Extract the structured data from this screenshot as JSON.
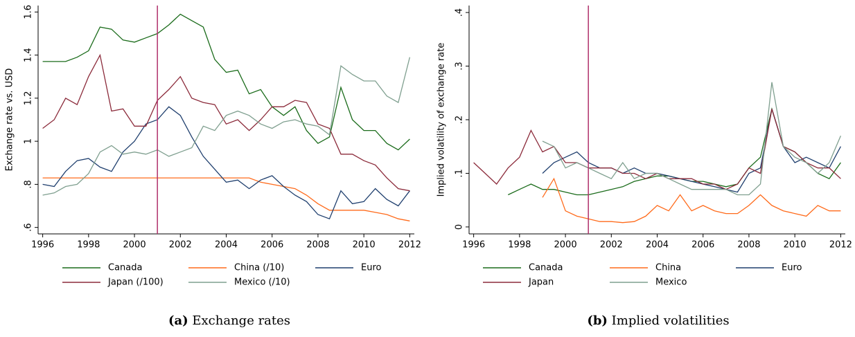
{
  "chart_data": [
    {
      "type": "line",
      "caption_label": "(a)",
      "caption": "Exchange rates",
      "ylabel": "Exchange rate vs. USD",
      "x": [
        1996,
        1996.5,
        1997,
        1997.5,
        1998,
        1998.5,
        1999,
        1999.5,
        2000,
        2000.5,
        2001,
        2001.5,
        2002,
        2002.5,
        2003,
        2003.5,
        2004,
        2004.5,
        2005,
        2005.5,
        2006,
        2006.5,
        2007,
        2007.5,
        2008,
        2008.5,
        2009,
        2009.5,
        2010,
        2010.5,
        2011,
        2011.5,
        2012
      ],
      "xlim": [
        1995.8,
        2012.2
      ],
      "xticks": [
        1996,
        1998,
        2000,
        2002,
        2004,
        2006,
        2008,
        2010,
        2012
      ],
      "ylim": [
        0.57,
        1.63
      ],
      "yticks": [
        {
          "value": 0.6,
          "label": ".6"
        },
        {
          "value": 0.8,
          "label": ".8"
        },
        1,
        1.2,
        1.4,
        1.6
      ],
      "vline": 2001,
      "vline_color": "#b0306a",
      "series": [
        {
          "name": "Canada",
          "color": "#1a6b1a",
          "values": [
            1.37,
            1.37,
            1.37,
            1.39,
            1.42,
            1.53,
            1.52,
            1.47,
            1.46,
            1.48,
            1.5,
            1.54,
            1.59,
            1.56,
            1.53,
            1.38,
            1.32,
            1.33,
            1.22,
            1.24,
            1.16,
            1.12,
            1.16,
            1.05,
            0.99,
            1.02,
            1.25,
            1.1,
            1.05,
            1.05,
            0.99,
            0.96,
            1.01
          ]
        },
        {
          "name": "China (/10)",
          "color": "#ff6a1a",
          "values": [
            0.83,
            0.83,
            0.83,
            0.83,
            0.83,
            0.83,
            0.83,
            0.83,
            0.83,
            0.83,
            0.83,
            0.83,
            0.83,
            0.83,
            0.83,
            0.83,
            0.83,
            0.83,
            0.83,
            0.81,
            0.8,
            0.79,
            0.78,
            0.75,
            0.71,
            0.68,
            0.68,
            0.68,
            0.68,
            0.67,
            0.66,
            0.64,
            0.63
          ]
        },
        {
          "name": "Euro",
          "color": "#1f3f6e",
          "values": [
            0.8,
            0.79,
            0.86,
            0.91,
            0.92,
            0.88,
            0.86,
            0.95,
            1.0,
            1.08,
            1.1,
            1.16,
            1.12,
            1.02,
            0.93,
            0.87,
            0.81,
            0.82,
            0.78,
            0.82,
            0.84,
            0.79,
            0.75,
            0.72,
            0.66,
            0.64,
            0.77,
            0.71,
            0.72,
            0.78,
            0.73,
            0.7,
            0.77
          ]
        },
        {
          "name": "Japan (/100)",
          "color": "#8b2a3a",
          "values": [
            1.06,
            1.1,
            1.2,
            1.17,
            1.3,
            1.4,
            1.14,
            1.15,
            1.07,
            1.07,
            1.19,
            1.24,
            1.3,
            1.2,
            1.18,
            1.17,
            1.08,
            1.1,
            1.05,
            1.1,
            1.16,
            1.16,
            1.19,
            1.18,
            1.08,
            1.06,
            0.94,
            0.94,
            0.91,
            0.89,
            0.83,
            0.78,
            0.77
          ]
        },
        {
          "name": "Mexico (/10)",
          "color": "#7f9f8f",
          "values": [
            0.75,
            0.76,
            0.79,
            0.8,
            0.85,
            0.95,
            0.98,
            0.94,
            0.95,
            0.94,
            0.96,
            0.93,
            0.95,
            0.97,
            1.07,
            1.05,
            1.12,
            1.14,
            1.12,
            1.08,
            1.06,
            1.09,
            1.1,
            1.08,
            1.07,
            1.03,
            1.35,
            1.31,
            1.28,
            1.28,
            1.21,
            1.18,
            1.39
          ]
        }
      ]
    },
    {
      "type": "line",
      "caption_label": "(b)",
      "caption": "Implied volatilities",
      "ylabel": "Implied volatility of exchange rate",
      "x": [
        1996,
        1996.5,
        1997,
        1997.5,
        1998,
        1998.5,
        1999,
        1999.5,
        2000,
        2000.5,
        2001,
        2001.5,
        2002,
        2002.5,
        2003,
        2003.5,
        2004,
        2004.5,
        2005,
        2005.5,
        2006,
        2006.5,
        2007,
        2007.5,
        2008,
        2008.5,
        2009,
        2009.5,
        2010,
        2010.5,
        2011,
        2011.5,
        2012
      ],
      "xlim": [
        1995.8,
        2012.2
      ],
      "xticks": [
        1996,
        1998,
        2000,
        2002,
        2004,
        2006,
        2008,
        2010,
        2012
      ],
      "ylim": [
        -0.013,
        0.413
      ],
      "yticks": [
        0,
        {
          "value": 0.1,
          "label": ".1"
        },
        {
          "value": 0.2,
          "label": ".2"
        },
        {
          "value": 0.3,
          "label": ".3"
        },
        {
          "value": 0.4,
          "label": ".4"
        }
      ],
      "vline": 2001,
      "vline_color": "#b0306a",
      "series": [
        {
          "name": "Canada",
          "color": "#1a6b1a",
          "values": [
            null,
            null,
            null,
            0.06,
            0.07,
            0.08,
            0.07,
            0.07,
            0.065,
            0.06,
            0.06,
            0.065,
            0.07,
            0.075,
            0.085,
            0.09,
            0.095,
            0.095,
            0.09,
            0.085,
            0.085,
            0.08,
            0.075,
            0.08,
            0.11,
            0.13,
            0.22,
            0.15,
            0.14,
            0.12,
            0.1,
            0.09,
            0.12
          ]
        },
        {
          "name": "China",
          "color": "#ff6a1a",
          "values": [
            null,
            null,
            null,
            null,
            null,
            null,
            0.055,
            0.09,
            0.03,
            0.02,
            0.015,
            0.01,
            0.01,
            0.008,
            0.01,
            0.02,
            0.04,
            0.03,
            0.06,
            0.03,
            0.04,
            0.03,
            0.025,
            0.025,
            0.04,
            0.06,
            0.04,
            0.03,
            0.025,
            0.02,
            0.04,
            0.03,
            0.03
          ]
        },
        {
          "name": "Euro",
          "color": "#1f3f6e",
          "values": [
            null,
            null,
            null,
            null,
            null,
            null,
            0.1,
            0.12,
            0.13,
            0.14,
            0.12,
            0.11,
            0.11,
            0.1,
            0.11,
            0.1,
            0.1,
            0.095,
            0.09,
            0.085,
            0.08,
            0.075,
            0.07,
            0.065,
            0.1,
            0.11,
            0.22,
            0.15,
            0.12,
            0.13,
            0.12,
            0.11,
            0.15
          ]
        },
        {
          "name": "Japan",
          "color": "#8b2a3a",
          "values": [
            0.12,
            0.1,
            0.08,
            0.11,
            0.13,
            0.18,
            0.14,
            0.15,
            0.12,
            0.12,
            0.11,
            0.11,
            0.11,
            0.1,
            0.1,
            0.09,
            0.1,
            0.09,
            0.09,
            0.09,
            0.08,
            0.08,
            0.07,
            0.08,
            0.11,
            0.1,
            0.22,
            0.15,
            0.14,
            0.12,
            0.11,
            0.11,
            0.09
          ]
        },
        {
          "name": "Mexico",
          "color": "#7f9f8f",
          "values": [
            null,
            null,
            null,
            null,
            null,
            null,
            0.16,
            0.15,
            0.11,
            0.12,
            0.11,
            0.1,
            0.09,
            0.12,
            0.09,
            0.1,
            0.1,
            0.09,
            0.08,
            0.07,
            0.07,
            0.07,
            0.07,
            0.06,
            0.06,
            0.08,
            0.27,
            0.15,
            0.13,
            0.12,
            0.1,
            0.12,
            0.17
          ]
        }
      ]
    }
  ]
}
